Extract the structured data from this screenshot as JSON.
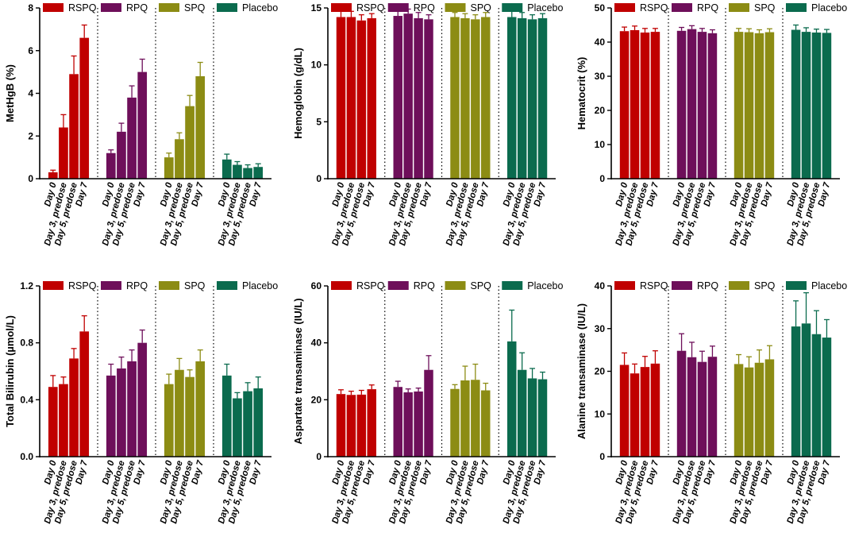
{
  "figure": {
    "categories": [
      "Day 0",
      "Day 3, predose",
      "Day 5, predose",
      "Day 7"
    ],
    "groups": [
      "RSPQ",
      "RPQ",
      "SPQ",
      "Placebo"
    ],
    "group_colors": {
      "RSPQ": "#c00000",
      "RPQ": "#6e0f5a",
      "SPQ": "#8c8c14",
      "Placebo": "#0b6b4e"
    }
  },
  "chart_data": [
    {
      "type": "bar",
      "ylabel": "MetHgB (%)",
      "ylim": [
        0,
        8
      ],
      "yticks": [
        0,
        2,
        4,
        6,
        8
      ],
      "legend": "top",
      "series": [
        {
          "name": "RSPQ",
          "values": [
            0.3,
            2.4,
            4.9,
            6.6
          ],
          "errors": [
            0.1,
            0.6,
            0.85,
            0.6
          ]
        },
        {
          "name": "RPQ",
          "values": [
            1.2,
            2.2,
            3.8,
            5.0
          ],
          "errors": [
            0.15,
            0.4,
            0.55,
            0.6
          ]
        },
        {
          "name": "SPQ",
          "values": [
            1.0,
            1.85,
            3.4,
            4.8
          ],
          "errors": [
            0.2,
            0.3,
            0.5,
            0.65
          ]
        },
        {
          "name": "Placebo",
          "values": [
            0.9,
            0.65,
            0.5,
            0.55
          ],
          "errors": [
            0.25,
            0.15,
            0.15,
            0.15
          ]
        }
      ]
    },
    {
      "type": "bar",
      "ylabel": "Hemoglobin (g/dL)",
      "ylim": [
        0,
        15
      ],
      "yticks": [
        0,
        5,
        10,
        15
      ],
      "legend": "top",
      "series": [
        {
          "name": "RSPQ",
          "values": [
            14.2,
            14.2,
            13.9,
            14.1
          ],
          "errors": [
            0.5,
            0.5,
            0.5,
            0.4
          ]
        },
        {
          "name": "RPQ",
          "values": [
            14.3,
            14.5,
            14.1,
            14.0
          ],
          "errors": [
            0.5,
            0.4,
            0.5,
            0.4
          ]
        },
        {
          "name": "SPQ",
          "values": [
            14.2,
            14.1,
            14.0,
            14.2
          ],
          "errors": [
            0.4,
            0.4,
            0.4,
            0.4
          ]
        },
        {
          "name": "Placebo",
          "values": [
            14.2,
            14.1,
            14.0,
            14.1
          ],
          "errors": [
            0.5,
            0.5,
            0.4,
            0.4
          ]
        }
      ]
    },
    {
      "type": "bar",
      "ylabel": "Hematocrit (%)",
      "ylim": [
        0,
        50
      ],
      "yticks": [
        0,
        10,
        20,
        30,
        40,
        50
      ],
      "legend": "top",
      "series": [
        {
          "name": "RSPQ",
          "values": [
            43.2,
            43.5,
            42.8,
            43.0
          ],
          "errors": [
            1.2,
            1.2,
            1.2,
            1.0
          ]
        },
        {
          "name": "RPQ",
          "values": [
            43.3,
            43.8,
            43.0,
            42.6
          ],
          "errors": [
            1.0,
            1.0,
            1.0,
            1.0
          ]
        },
        {
          "name": "SPQ",
          "values": [
            43.0,
            42.9,
            42.6,
            42.9
          ],
          "errors": [
            1.0,
            1.0,
            1.0,
            1.0
          ]
        },
        {
          "name": "Placebo",
          "values": [
            43.6,
            43.0,
            42.8,
            42.7
          ],
          "errors": [
            1.4,
            1.2,
            1.0,
            1.0
          ]
        }
      ]
    },
    {
      "type": "bar",
      "ylabel": "Total Bilirubin (µmol/L)",
      "ylim": [
        0,
        1.2
      ],
      "yticks": [
        0.0,
        0.4,
        0.8,
        1.2
      ],
      "ytick_decimals": 1,
      "legend": "top",
      "series": [
        {
          "name": "RSPQ",
          "values": [
            0.49,
            0.51,
            0.69,
            0.88
          ],
          "errors": [
            0.08,
            0.05,
            0.07,
            0.11
          ]
        },
        {
          "name": "RPQ",
          "values": [
            0.57,
            0.62,
            0.67,
            0.8
          ],
          "errors": [
            0.08,
            0.08,
            0.08,
            0.09
          ]
        },
        {
          "name": "SPQ",
          "values": [
            0.51,
            0.61,
            0.56,
            0.67
          ],
          "errors": [
            0.07,
            0.08,
            0.05,
            0.08
          ]
        },
        {
          "name": "Placebo",
          "values": [
            0.57,
            0.41,
            0.46,
            0.48
          ],
          "errors": [
            0.08,
            0.04,
            0.06,
            0.08
          ]
        }
      ]
    },
    {
      "type": "bar",
      "ylabel": "Aspartate transaminase (IU/L)",
      "ylim": [
        0,
        60
      ],
      "yticks": [
        0,
        20,
        40,
        60
      ],
      "legend": "top",
      "series": [
        {
          "name": "RSPQ",
          "values": [
            22.0,
            21.7,
            21.8,
            23.7
          ],
          "errors": [
            1.5,
            1.3,
            1.5,
            1.5
          ]
        },
        {
          "name": "RPQ",
          "values": [
            24.5,
            22.6,
            22.9,
            30.5
          ],
          "errors": [
            2.0,
            1.2,
            1.2,
            5.0
          ]
        },
        {
          "name": "SPQ",
          "values": [
            23.8,
            26.8,
            27.0,
            23.3
          ],
          "errors": [
            1.5,
            5.0,
            5.5,
            2.5
          ]
        },
        {
          "name": "Placebo",
          "values": [
            40.5,
            30.5,
            27.5,
            27.2
          ],
          "errors": [
            11.0,
            6.0,
            3.5,
            2.5
          ]
        }
      ]
    },
    {
      "type": "bar",
      "ylabel": "Alanine transaminase (IU/L)",
      "ylim": [
        0,
        40
      ],
      "yticks": [
        0,
        10,
        20,
        30,
        40
      ],
      "legend": "top",
      "series": [
        {
          "name": "RSPQ",
          "values": [
            21.5,
            19.5,
            21.0,
            21.8
          ],
          "errors": [
            2.8,
            2.2,
            2.5,
            3.0
          ]
        },
        {
          "name": "RPQ",
          "values": [
            24.8,
            23.3,
            22.2,
            23.4
          ],
          "errors": [
            4.0,
            3.5,
            2.5,
            2.5
          ]
        },
        {
          "name": "SPQ",
          "values": [
            21.7,
            20.9,
            22.0,
            22.8
          ],
          "errors": [
            2.2,
            2.5,
            3.0,
            3.2
          ]
        },
        {
          "name": "Placebo",
          "values": [
            30.5,
            31.2,
            28.7,
            27.9
          ],
          "errors": [
            6.0,
            7.2,
            5.5,
            4.2
          ]
        }
      ]
    }
  ]
}
